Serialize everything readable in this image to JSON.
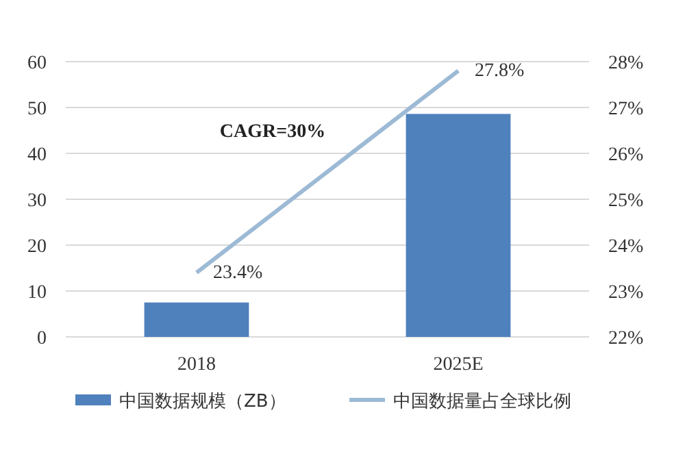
{
  "chart_data": {
    "type": "bar",
    "categories": [
      "2018",
      "2025E"
    ],
    "series": [
      {
        "name": "中国数据规模（ZB）",
        "color": "#4f81bd",
        "values": [
          7.5,
          48.6
        ]
      },
      {
        "name": "中国数据量占全球比例",
        "type": "line",
        "axis": "y2",
        "color": "#9dbad5",
        "values": [
          23.4,
          27.8
        ],
        "value_labels": [
          "23.4%",
          "27.8%"
        ],
        "marker": "none"
      }
    ],
    "ylim": [
      0,
      60
    ],
    "yticks": [
      0,
      10,
      20,
      30,
      40,
      50,
      60
    ],
    "y2lim": [
      22,
      28
    ],
    "y2ticks": [
      {
        "value": 22,
        "label": "22%"
      },
      {
        "value": 23,
        "label": "23%"
      },
      {
        "value": 24,
        "label": "24%"
      },
      {
        "value": 25,
        "label": "25%"
      },
      {
        "value": 26,
        "label": "26%"
      },
      {
        "value": 27,
        "label": "27%"
      },
      {
        "value": 28,
        "label": "28%"
      }
    ],
    "annotations": [
      "CAGR=30%"
    ],
    "grid": "y",
    "legend": "bottom"
  }
}
